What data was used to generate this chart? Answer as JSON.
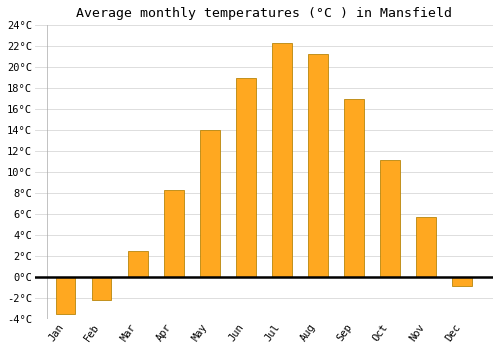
{
  "months": [
    "Jan",
    "Feb",
    "Mar",
    "Apr",
    "May",
    "Jun",
    "Jul",
    "Aug",
    "Sep",
    "Oct",
    "Nov",
    "Dec"
  ],
  "temperatures": [
    -3.5,
    -2.2,
    2.5,
    8.3,
    14.0,
    19.0,
    22.3,
    21.3,
    17.0,
    11.2,
    5.7,
    -0.8
  ],
  "bar_color": "#FFA820",
  "bar_edge_color": "#B8860B",
  "title": "Average monthly temperatures (°C ) in Mansfield",
  "ylim": [
    -4,
    24
  ],
  "yticks": [
    -4,
    -2,
    0,
    2,
    4,
    6,
    8,
    10,
    12,
    14,
    16,
    18,
    20,
    22,
    24
  ],
  "background_color": "#ffffff",
  "grid_color": "#d8d8d8",
  "title_fontsize": 9.5,
  "tick_fontsize": 7.5,
  "bar_width": 0.55
}
